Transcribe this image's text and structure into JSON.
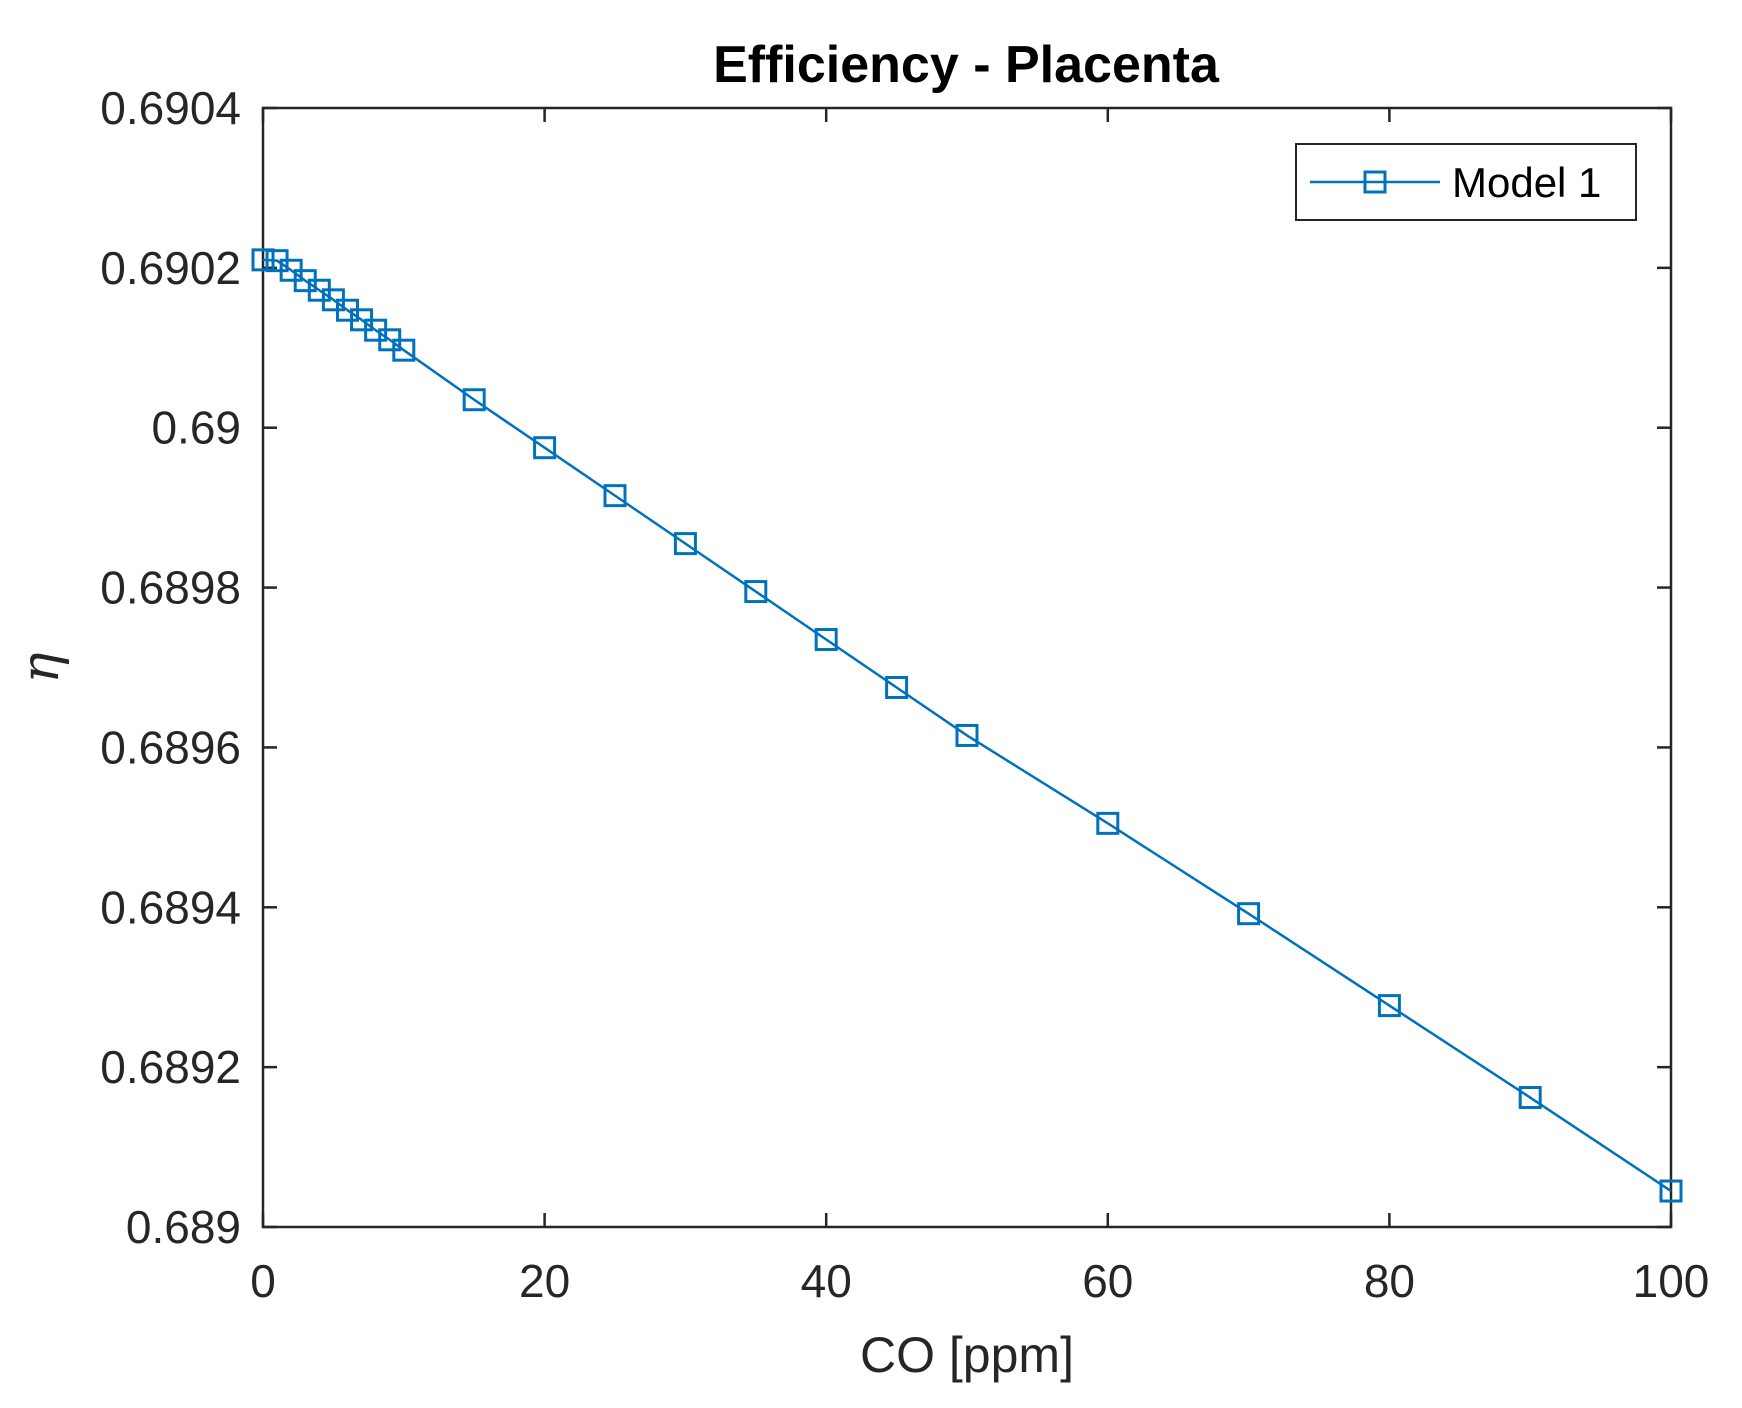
{
  "colors": {
    "series": "#0072BD",
    "axis": "#262626",
    "background": "#ffffff"
  },
  "chart_data": {
    "type": "line",
    "title": "Efficiency - Placenta",
    "xlabel": "CO [ppm]",
    "ylabel": "η",
    "xlim": [
      0,
      100
    ],
    "ylim": [
      0.689,
      0.6904
    ],
    "xticks": [
      0,
      20,
      40,
      60,
      80,
      100
    ],
    "xtick_labels": [
      "0",
      "20",
      "40",
      "60",
      "80",
      "100"
    ],
    "yticks": [
      0.689,
      0.6892,
      0.6894,
      0.6896,
      0.6898,
      0.69,
      0.6902,
      0.6904
    ],
    "ytick_labels": [
      "0.689",
      "0.6892",
      "0.6894",
      "0.6896",
      "0.6898",
      "0.69",
      "0.6902",
      "0.6904"
    ],
    "grid": false,
    "legend_position": "top-right",
    "marker": "square",
    "series": [
      {
        "name": "Model 1",
        "x": [
          0,
          1,
          2,
          3,
          4,
          5,
          6,
          7,
          8,
          9,
          10,
          15,
          20,
          25,
          30,
          35,
          40,
          45,
          50,
          60,
          70,
          80,
          90,
          100
        ],
        "y": [
          0.69021,
          0.690209,
          0.690197,
          0.690184,
          0.690172,
          0.69016,
          0.690147,
          0.690135,
          0.690122,
          0.69011,
          0.690097,
          0.690035,
          0.689975,
          0.689915,
          0.689855,
          0.689795,
          0.689735,
          0.689675,
          0.689615,
          0.689505,
          0.689392,
          0.689277,
          0.689162,
          0.689045
        ]
      }
    ]
  }
}
